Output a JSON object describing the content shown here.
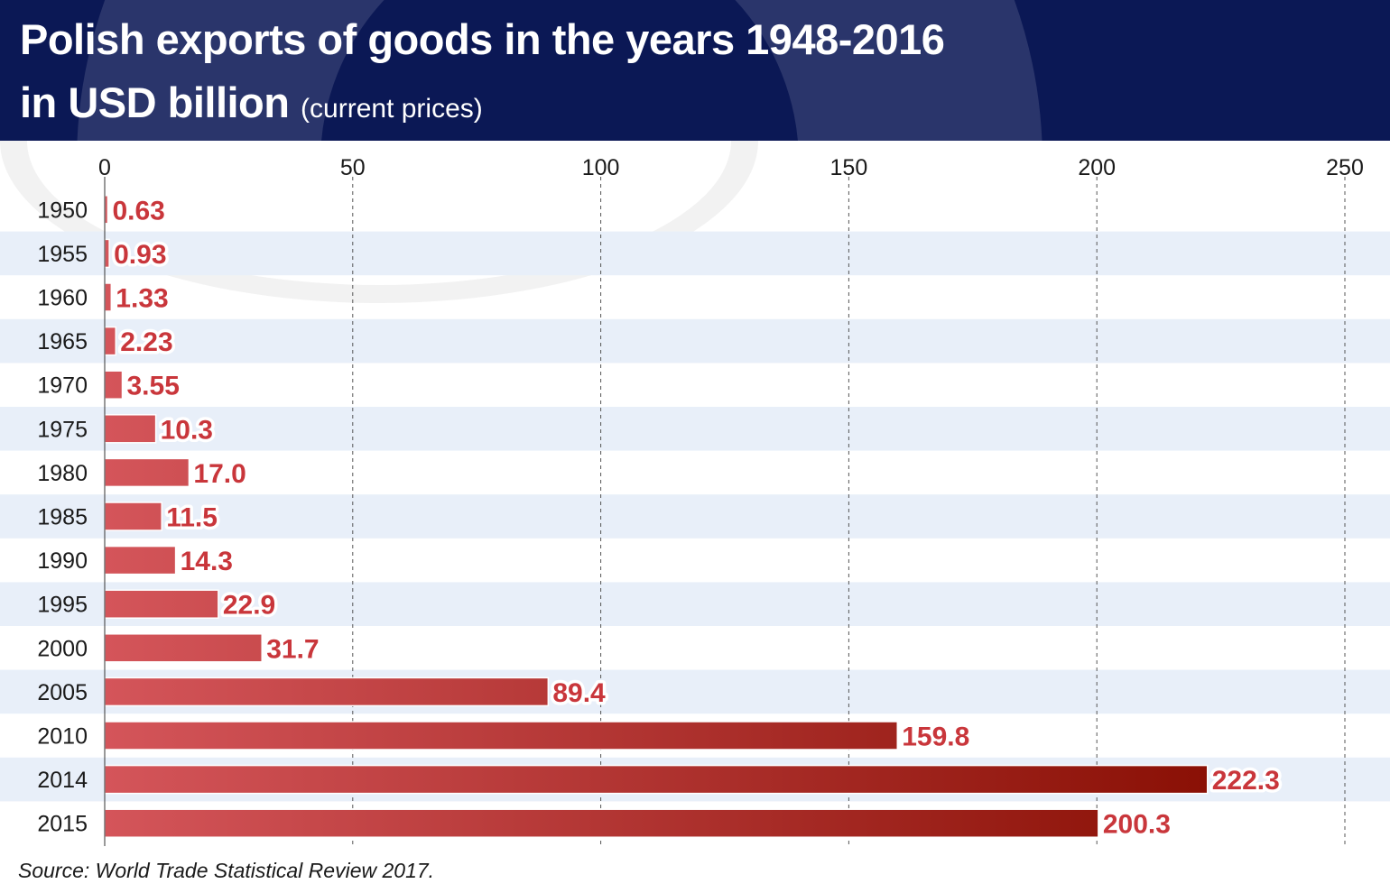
{
  "header": {
    "title_line1": "Polish exports of goods in the years 1948-2016",
    "title_line2": "in USD billion",
    "subtitle": "(current prices)"
  },
  "source": "Source: World Trade Statistical Review 2017.",
  "colors": {
    "header_bg": "#0b1855",
    "bar_light": "#d4555a",
    "bar_dark": "#8a1005",
    "label_red": "#c9363b",
    "band_light": "#e8eff9"
  },
  "chart_data": {
    "type": "bar",
    "orientation": "horizontal",
    "categories": [
      "1950",
      "1955",
      "1960",
      "1965",
      "1970",
      "1975",
      "1980",
      "1985",
      "1990",
      "1995",
      "2000",
      "2005",
      "2010",
      "2014",
      "2015"
    ],
    "values": [
      0.63,
      0.93,
      1.33,
      2.23,
      3.55,
      10.3,
      17.0,
      11.5,
      14.3,
      22.9,
      31.7,
      89.4,
      159.8,
      222.3,
      200.3
    ],
    "value_labels": [
      "0.63",
      "0.93",
      "1.33",
      "2.23",
      "3.55",
      "10.3",
      "17.0",
      "11.5",
      "14.3",
      "22.9",
      "31.7",
      "89.4",
      "159.8",
      "222.3",
      "200.3"
    ],
    "x_ticks": [
      "0",
      "50",
      "100",
      "150",
      "200",
      "250"
    ],
    "xlim": [
      0,
      250
    ],
    "axis_position": "top",
    "grid": "vertical dashed"
  }
}
